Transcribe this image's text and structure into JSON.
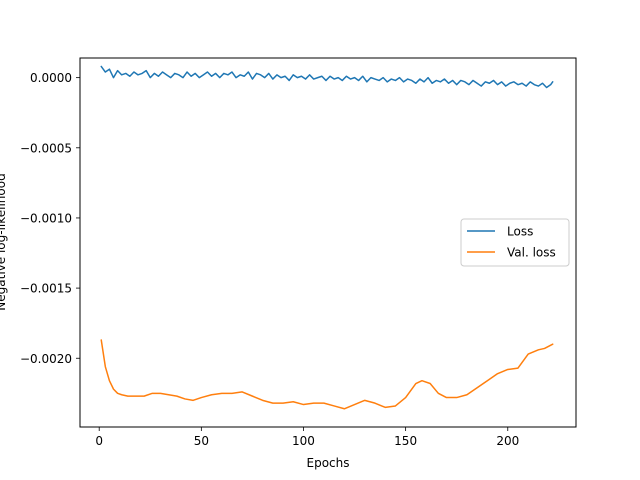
{
  "chart_data": {
    "type": "line",
    "xlabel": "Epochs",
    "ylabel": "Negative log-likelihood",
    "xlim": [
      -9.4,
      233.4
    ],
    "ylim": [
      -0.00249,
      0.00014
    ],
    "xticks": [
      0,
      50,
      100,
      150,
      200
    ],
    "yticks": [
      0.0,
      -0.0005,
      -0.001,
      -0.0015,
      -0.002
    ],
    "xtick_labels": [
      "0",
      "50",
      "100",
      "150",
      "200"
    ],
    "ytick_labels": [
      "0.0000",
      "−0.0005",
      "−0.0010",
      "−0.0015",
      "−0.0020"
    ],
    "grid": false,
    "legend_position": "center-right",
    "series": [
      {
        "name": "Loss",
        "color": "#1f77b4",
        "x": [
          1,
          3,
          5,
          7,
          9,
          11,
          13,
          15,
          17,
          19,
          21,
          23,
          25,
          27,
          29,
          31,
          33,
          35,
          37,
          39,
          41,
          43,
          45,
          47,
          49,
          51,
          53,
          55,
          57,
          59,
          61,
          63,
          65,
          67,
          69,
          71,
          73,
          75,
          77,
          79,
          81,
          83,
          85,
          87,
          89,
          91,
          93,
          95,
          97,
          99,
          101,
          103,
          105,
          107,
          109,
          111,
          113,
          115,
          117,
          119,
          121,
          123,
          125,
          127,
          129,
          131,
          133,
          135,
          137,
          139,
          141,
          143,
          145,
          147,
          149,
          151,
          153,
          155,
          157,
          159,
          161,
          163,
          165,
          167,
          169,
          171,
          173,
          175,
          177,
          179,
          181,
          183,
          185,
          187,
          189,
          191,
          193,
          195,
          197,
          199,
          201,
          203,
          205,
          207,
          209,
          211,
          213,
          215,
          217,
          219,
          221,
          222
        ],
        "values": [
          8e-05,
          4e-05,
          6e-05,
          0.0,
          5e-05,
          2e-05,
          3e-05,
          1e-05,
          4e-05,
          2e-05,
          3e-05,
          5e-05,
          0.0,
          3e-05,
          1e-05,
          4e-05,
          2e-05,
          0.0,
          3e-05,
          2e-05,
          0.0,
          4e-05,
          1e-05,
          3e-05,
          0.0,
          2e-05,
          4e-05,
          1e-05,
          3e-05,
          0.0,
          3e-05,
          2e-05,
          4e-05,
          0.0,
          2e-05,
          1e-05,
          4e-05,
          -1e-05,
          3e-05,
          2e-05,
          0.0,
          3e-05,
          -1e-05,
          2e-05,
          0.0,
          1e-05,
          -2e-05,
          2e-05,
          0.0,
          1e-05,
          -1e-05,
          2e-05,
          -1e-05,
          0.0,
          1e-05,
          -2e-05,
          1e-05,
          -1e-05,
          0.0,
          -2e-05,
          1e-05,
          -1e-05,
          0.0,
          -2e-05,
          1e-05,
          -3e-05,
          0.0,
          -1e-05,
          -2e-05,
          0.0,
          -3e-05,
          -1e-05,
          -2e-05,
          0.0,
          -3e-05,
          -1e-05,
          -2e-05,
          -4e-05,
          -1e-05,
          -3e-05,
          0.0,
          -4e-05,
          -2e-05,
          -3e-05,
          -1e-05,
          -4e-05,
          -2e-05,
          -5e-05,
          -2e-05,
          -3e-05,
          -5e-05,
          -2e-05,
          -4e-05,
          -6e-05,
          -3e-05,
          -4e-05,
          -2e-05,
          -5e-05,
          -3e-05,
          -6e-05,
          -4e-05,
          -3e-05,
          -5e-05,
          -4e-05,
          -6e-05,
          -3e-05,
          -5e-05,
          -6e-05,
          -4e-05,
          -7e-05,
          -5e-05,
          -3e-05
        ]
      },
      {
        "name": "Val. loss",
        "color": "#ff7f0e",
        "x": [
          1,
          3,
          5,
          7,
          9,
          11,
          14,
          18,
          22,
          26,
          30,
          34,
          38,
          42,
          46,
          50,
          55,
          60,
          65,
          70,
          75,
          80,
          85,
          90,
          95,
          100,
          105,
          110,
          115,
          120,
          125,
          130,
          135,
          140,
          145,
          150,
          155,
          158,
          162,
          166,
          170,
          175,
          180,
          185,
          190,
          195,
          200,
          205,
          210,
          215,
          218,
          222
        ],
        "values": [
          -0.00187,
          -0.00206,
          -0.00216,
          -0.00222,
          -0.00225,
          -0.00226,
          -0.00227,
          -0.00227,
          -0.00227,
          -0.00225,
          -0.00225,
          -0.00226,
          -0.00227,
          -0.00229,
          -0.0023,
          -0.00228,
          -0.00226,
          -0.00225,
          -0.00225,
          -0.00224,
          -0.00227,
          -0.0023,
          -0.00232,
          -0.00232,
          -0.00231,
          -0.00233,
          -0.00232,
          -0.00232,
          -0.00234,
          -0.00236,
          -0.00233,
          -0.0023,
          -0.00232,
          -0.00235,
          -0.00234,
          -0.00228,
          -0.00218,
          -0.00216,
          -0.00218,
          -0.00225,
          -0.00228,
          -0.00228,
          -0.00226,
          -0.00221,
          -0.00216,
          -0.00211,
          -0.00208,
          -0.00207,
          -0.00197,
          -0.00194,
          -0.00193,
          -0.0019
        ]
      }
    ]
  }
}
